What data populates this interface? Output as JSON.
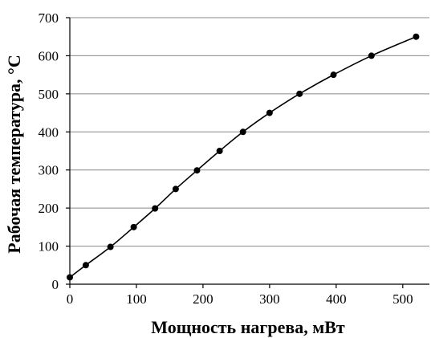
{
  "chart_data": {
    "type": "line",
    "title": "",
    "xlabel": "Мощность нагрева, мВт",
    "ylabel": "Рабочая температура, °С",
    "xlim": [
      0,
      540
    ],
    "ylim": [
      0,
      700
    ],
    "x_ticks": [
      0,
      100,
      200,
      300,
      400,
      500
    ],
    "y_ticks": [
      0,
      100,
      200,
      300,
      400,
      500,
      600,
      700
    ],
    "x_tick_labels": [
      "0",
      "100",
      "200",
      "300",
      "400",
      "500"
    ],
    "y_tick_labels": [
      "0",
      "100",
      "200",
      "300",
      "400",
      "500",
      "600",
      "700"
    ],
    "grid": "horizontal",
    "legend": "none",
    "series": [
      {
        "color": "#000000",
        "marker": "circle",
        "points": [
          {
            "x": 0,
            "y": 18
          },
          {
            "x": 24,
            "y": 50
          },
          {
            "x": 61,
            "y": 98
          },
          {
            "x": 96,
            "y": 150
          },
          {
            "x": 128,
            "y": 199
          },
          {
            "x": 159,
            "y": 250
          },
          {
            "x": 191,
            "y": 299
          },
          {
            "x": 225,
            "y": 350
          },
          {
            "x": 260,
            "y": 400
          },
          {
            "x": 300,
            "y": 450
          },
          {
            "x": 345,
            "y": 500
          },
          {
            "x": 396,
            "y": 550
          },
          {
            "x": 453,
            "y": 600
          },
          {
            "x": 520,
            "y": 650
          }
        ]
      }
    ]
  }
}
